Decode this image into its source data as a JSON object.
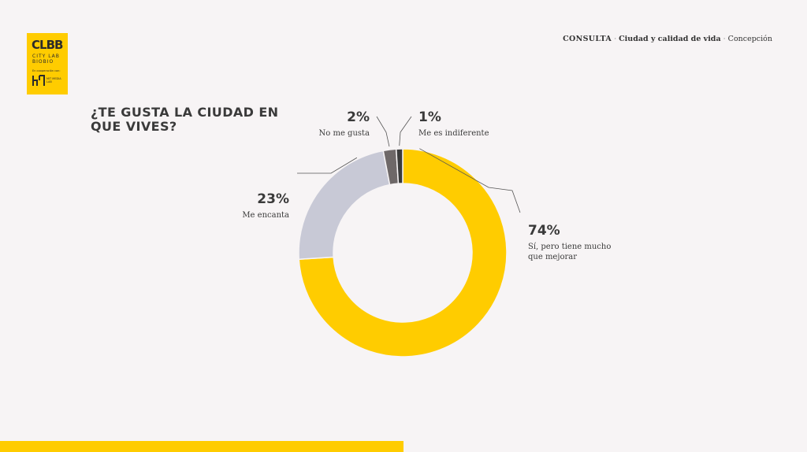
{
  "logo": {
    "mark": "CLBB",
    "name_line1": "CITY LAB",
    "name_line2": "BIOBIO",
    "tagline": "En cooperación con:",
    "partner": "MIT MEDIA LAB"
  },
  "header": {
    "section": "CONSULTA",
    "sep1": " · ",
    "topic": "Ciudad y calidad de vida",
    "sep2": " · ",
    "city": "Concepción"
  },
  "question": "¿TE GUSTA LA CIUDAD EN QUE VIVES?",
  "colors": {
    "accent": "#ffcc00",
    "light_gray": "#c8c9d6",
    "dark_gray": "#6e6868",
    "darkest": "#3a3a3a"
  },
  "chart_data": {
    "type": "pie",
    "donut": true,
    "slices": [
      {
        "label": "Sí, pero tiene mucho que mejorar",
        "label_lines": [
          "Sí, pero tiene mucho",
          "que mejorar"
        ],
        "value": 74,
        "display": "74%",
        "color": "#ffcc00"
      },
      {
        "label": "Me encanta",
        "label_lines": [
          "Me encanta"
        ],
        "value": 23,
        "display": "23%",
        "color": "#c8c9d6"
      },
      {
        "label": "No me gusta",
        "label_lines": [
          "No me gusta"
        ],
        "value": 2,
        "display": "2%",
        "color": "#6e6868"
      },
      {
        "label": "Me es indiferente",
        "label_lines": [
          "Me es indiferente"
        ],
        "value": 1,
        "display": "1%",
        "color": "#3a3a3a"
      }
    ]
  }
}
